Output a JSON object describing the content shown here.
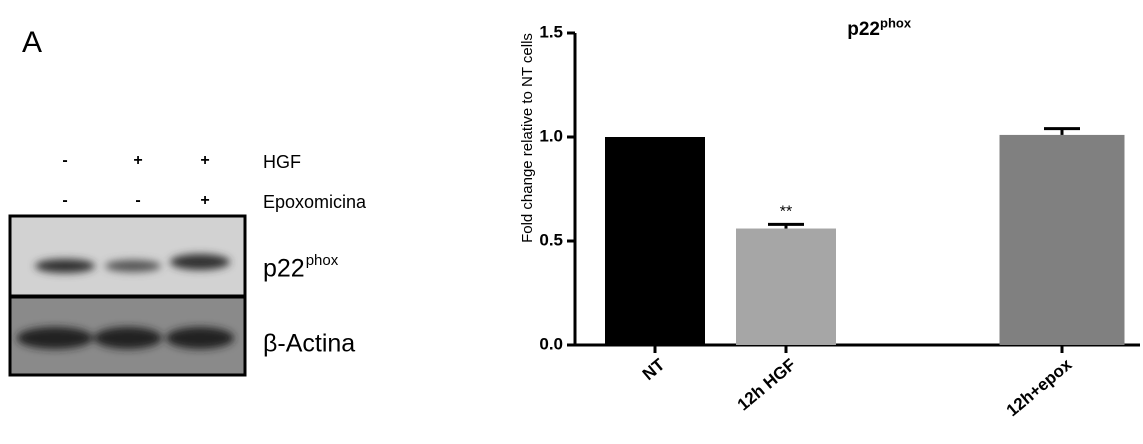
{
  "panel_label": "A",
  "blot": {
    "treatments": [
      {
        "name": "HGF",
        "signs": [
          "-",
          "+",
          "+"
        ]
      },
      {
        "name": "Epoxomicina",
        "signs": [
          "-",
          "-",
          "+"
        ]
      }
    ],
    "bands": [
      {
        "name": "p22",
        "sup": "phox"
      },
      {
        "name": "β-Actina"
      }
    ]
  },
  "chart_data": {
    "type": "bar",
    "title": "p22",
    "title_sup": "phox",
    "y_label": "Fold change relative to NT cells",
    "categories": [
      "NT",
      "12h HGF",
      "12h+epox"
    ],
    "values": [
      1.0,
      0.56,
      1.01
    ],
    "errors": [
      null,
      0.02,
      0.03
    ],
    "colors": [
      "#000000",
      "#a6a6a6",
      "#808080"
    ],
    "annotations": [
      null,
      "**",
      null
    ],
    "ylim": [
      0,
      1.5
    ],
    "yticks": [
      {
        "value": 0,
        "label": "0.0"
      },
      {
        "value": 0.5,
        "label": "0.5"
      },
      {
        "value": 1,
        "label": "1.0"
      },
      {
        "value": 1.5,
        "label": "1.5"
      }
    ]
  }
}
